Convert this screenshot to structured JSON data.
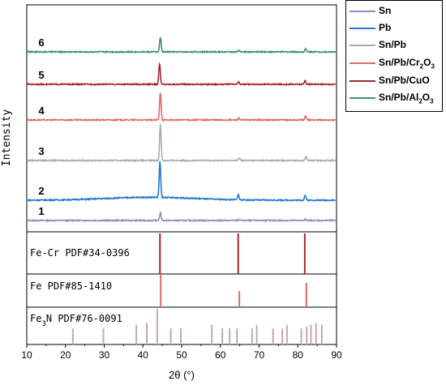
{
  "chart_data": {
    "type": "line",
    "xlabel": "2θ (°)",
    "ylabel": "Intensity",
    "xlim": [
      10,
      90
    ],
    "xticks": [
      10,
      20,
      30,
      40,
      50,
      60,
      70,
      80,
      90
    ],
    "grid": false,
    "legend_placement": "top-right outside",
    "series": [
      {
        "name": "Sn",
        "label": "1",
        "color": "#9b84c8",
        "peaks": [
          {
            "x": 44.5,
            "h": 0.45
          },
          {
            "x": 64.8,
            "h": 0.05
          },
          {
            "x": 82.0,
            "h": 0.07
          }
        ],
        "hump": 0.0
      },
      {
        "name": "Pb",
        "label": "2",
        "color": "#1f78d1",
        "peaks": [
          {
            "x": 44.4,
            "h": 1.0
          },
          {
            "x": 64.6,
            "h": 0.15
          },
          {
            "x": 81.9,
            "h": 0.14
          }
        ],
        "hump": 0.12
      },
      {
        "name": "Sn/Pb",
        "label": "3",
        "color": "#a9a9b9",
        "peaks": [
          {
            "x": 44.5,
            "h": 1.0
          },
          {
            "x": 64.9,
            "h": 0.07
          },
          {
            "x": 82.1,
            "h": 0.12
          }
        ],
        "hump": 0.0
      },
      {
        "name": "Sn/Pb/Cr2O3",
        "label": "4",
        "color": "#e06a5f",
        "peaks": [
          {
            "x": 44.5,
            "h": 0.85
          },
          {
            "x": 64.8,
            "h": 0.06
          },
          {
            "x": 82.0,
            "h": 0.13
          }
        ],
        "hump": 0.0
      },
      {
        "name": "Sn/Pb/CuO",
        "label": "5",
        "color": "#a3282c",
        "peaks": [
          {
            "x": 44.3,
            "h": 0.75
          },
          {
            "x": 64.7,
            "h": 0.08
          },
          {
            "x": 81.9,
            "h": 0.14
          }
        ],
        "hump": 0.0
      },
      {
        "name": "Sn/Pb/Al2O3",
        "label": "6",
        "color": "#3e8f6e",
        "peaks": [
          {
            "x": 44.5,
            "h": 0.6
          },
          {
            "x": 64.8,
            "h": 0.05
          },
          {
            "x": 82.0,
            "h": 0.12
          }
        ],
        "hump": 0.0
      }
    ],
    "reference_patterns": [
      {
        "label": "Fe-Cr PDF#34-0396",
        "color": "#a3282c",
        "lines": [
          {
            "x": 44.4,
            "h": 1.0
          },
          {
            "x": 64.6,
            "h": 1.0
          },
          {
            "x": 81.8,
            "h": 1.0
          }
        ]
      },
      {
        "label": "Fe PDF#85-1410",
        "color": "#e06a5f",
        "lines": [
          {
            "x": 44.6,
            "h": 1.0
          },
          {
            "x": 64.9,
            "h": 0.5
          },
          {
            "x": 82.2,
            "h": 0.75
          }
        ]
      },
      {
        "label": "Fe3N PDF#76-0091",
        "color": "#c4a8ab",
        "lines": [
          {
            "x": 21.9,
            "h": 0.45
          },
          {
            "x": 29.8,
            "h": 0.45
          },
          {
            "x": 38.3,
            "h": 0.55
          },
          {
            "x": 41.0,
            "h": 0.6
          },
          {
            "x": 43.7,
            "h": 1.0
          },
          {
            "x": 47.2,
            "h": 0.45
          },
          {
            "x": 49.8,
            "h": 0.45
          },
          {
            "x": 57.8,
            "h": 0.55
          },
          {
            "x": 60.5,
            "h": 0.45
          },
          {
            "x": 62.4,
            "h": 0.45
          },
          {
            "x": 64.3,
            "h": 0.45
          },
          {
            "x": 68.2,
            "h": 0.45
          },
          {
            "x": 69.4,
            "h": 0.55
          },
          {
            "x": 73.6,
            "h": 0.45
          },
          {
            "x": 76.0,
            "h": 0.45
          },
          {
            "x": 77.2,
            "h": 0.55
          },
          {
            "x": 80.9,
            "h": 0.45
          },
          {
            "x": 82.3,
            "h": 0.5
          },
          {
            "x": 83.4,
            "h": 0.55
          },
          {
            "x": 84.7,
            "h": 0.6
          },
          {
            "x": 86.2,
            "h": 0.55
          }
        ]
      }
    ]
  }
}
